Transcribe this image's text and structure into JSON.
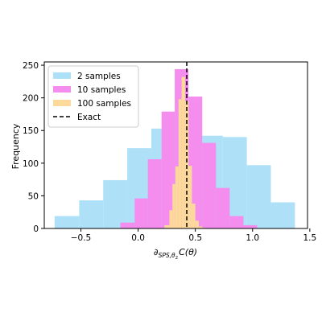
{
  "chart_data": {
    "type": "histogram",
    "xlabel": "∂SPS,θ2 C(θ)",
    "xlabel_parts": {
      "prefix": "∂",
      "subscript": "SPS,θ",
      "subsubscript": "2",
      "suffix": "C(θ)"
    },
    "ylabel": "Frequency",
    "xlim": [
      -0.82,
      1.48
    ],
    "ylim": [
      0,
      255
    ],
    "xticks": [
      -0.5,
      0.0,
      0.5,
      1.0,
      1.5
    ],
    "xtick_labels": [
      "−0.5",
      "0.0",
      "0.5",
      "1.0",
      "1.5"
    ],
    "yticks": [
      0,
      50,
      100,
      150,
      200,
      250
    ],
    "ytick_labels": [
      "0",
      "50",
      "100",
      "150",
      "200",
      "250"
    ],
    "grid": false,
    "legend_position": "upper-left",
    "series": [
      {
        "name": "2 samples",
        "color": "#aee0f7",
        "bin_edges": [
          -0.73,
          -0.515,
          -0.305,
          -0.095,
          0.115,
          0.325,
          0.53,
          0.74,
          0.95,
          1.16,
          1.37
        ],
        "counts": [
          19,
          43,
          74,
          123,
          153,
          152,
          142,
          140,
          97,
          40
        ]
      },
      {
        "name": "10 samples",
        "color": "#f48ded",
        "bin_edges": [
          -0.155,
          -0.03,
          0.085,
          0.205,
          0.32,
          0.44,
          0.56,
          0.68,
          0.8,
          0.92,
          1.04
        ],
        "counts": [
          9,
          46,
          106,
          179,
          244,
          202,
          131,
          62,
          19,
          5
        ]
      },
      {
        "name": "100 samples",
        "color": "#fdd99b",
        "bin_edges": [
          0.23,
          0.273,
          0.3,
          0.325,
          0.353,
          0.38,
          0.41,
          0.44,
          0.47,
          0.5,
          0.53,
          0.56,
          0.59
        ],
        "counts": [
          5,
          28,
          68,
          95,
          198,
          232,
          195,
          96,
          38,
          12,
          3,
          1
        ]
      }
    ],
    "reference_line": {
      "name": "Exact",
      "x": 0.425,
      "style": "dashed",
      "color": "#000000"
    }
  }
}
